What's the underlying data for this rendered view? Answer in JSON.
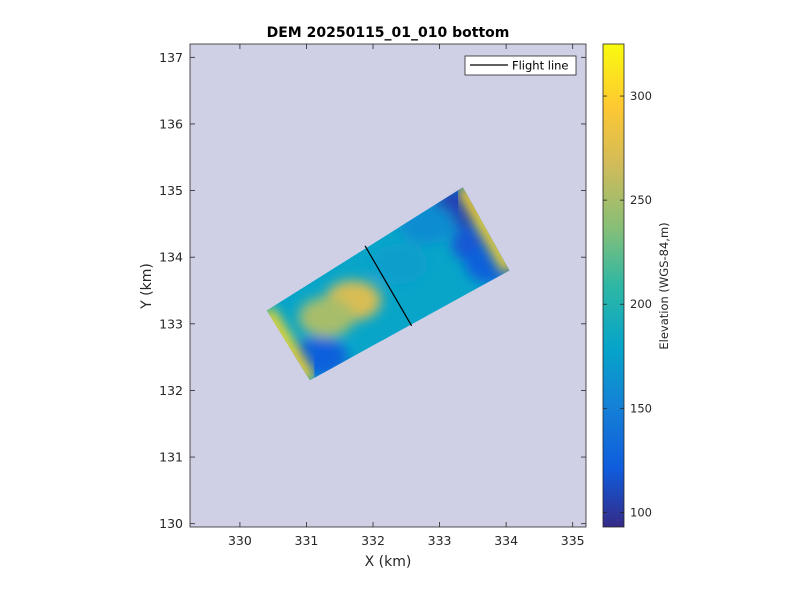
{
  "chart_data": {
    "type": "heatmap",
    "title": "DEM 20250115_01_010 bottom",
    "xlabel": "X (km)",
    "ylabel": "Y (km)",
    "xlim": [
      329.25,
      335.2
    ],
    "ylim": [
      129.95,
      137.2
    ],
    "xticks": [
      330,
      331,
      332,
      333,
      334,
      335
    ],
    "yticks": [
      130,
      131,
      132,
      133,
      134,
      135,
      136,
      137
    ],
    "grid": false,
    "background_fill": "#cfd0e6",
    "legend": {
      "location": "top-right",
      "entries": [
        {
          "label": "Flight line",
          "color": "#000000"
        }
      ]
    },
    "colorbar": {
      "label": "Elevation (WGS-84,m)",
      "range": [
        93,
        325
      ],
      "ticks": [
        100,
        150,
        200,
        250,
        300
      ],
      "colormap": "parula"
    },
    "dem_swath": {
      "corners": [
        [
          330.4,
          133.2
        ],
        [
          331.05,
          132.15
        ],
        [
          334.05,
          133.8
        ],
        [
          333.35,
          135.05
        ]
      ],
      "description_values": {
        "edge_high": 305,
        "center_mid": 270,
        "typical": 180,
        "low_patches": 110
      },
      "features": [
        {
          "x": 331.7,
          "y": 133.35,
          "value": 272
        },
        {
          "x": 331.3,
          "y": 133.1,
          "value": 250
        },
        {
          "x": 332.4,
          "y": 133.9,
          "value": 175
        },
        {
          "x": 333.3,
          "y": 134.75,
          "value": 108
        },
        {
          "x": 333.6,
          "y": 134.2,
          "value": 118
        },
        {
          "x": 333.8,
          "y": 133.9,
          "value": 125
        },
        {
          "x": 331.2,
          "y": 132.5,
          "value": 125
        },
        {
          "x": 332.8,
          "y": 134.5,
          "value": 160
        }
      ]
    },
    "flight_line": {
      "x": [
        331.88,
        332.58
      ],
      "y": [
        134.17,
        132.97
      ]
    }
  }
}
